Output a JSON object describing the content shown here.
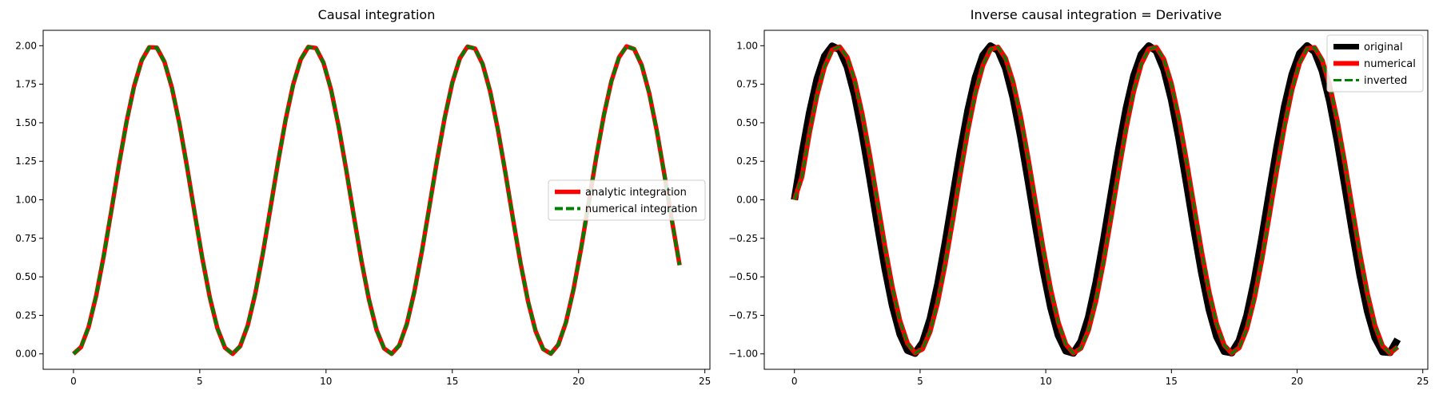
{
  "chart_data": [
    {
      "type": "line",
      "title": "Causal integration",
      "xlabel": "",
      "ylabel": "",
      "xlim": [
        -1.2,
        25.2
      ],
      "ylim": [
        -0.1,
        2.1
      ],
      "xticks": [
        "0",
        "5",
        "10",
        "15",
        "20",
        "25"
      ],
      "yticks": [
        "0.00",
        "0.25",
        "0.50",
        "0.75",
        "1.00",
        "1.25",
        "1.50",
        "1.75",
        "2.00"
      ],
      "grid": false,
      "legend_position": "center-right",
      "x_range": [
        0,
        24
      ],
      "x_step": 0.3,
      "series": [
        {
          "name": "analytic integration",
          "function": "1 - cos(x)",
          "color": "#ff0000",
          "style": "solid"
        },
        {
          "name": "numerical integration",
          "function": "1 - cos(x)",
          "color": "#008000",
          "style": "dashed"
        }
      ]
    },
    {
      "type": "line",
      "title": "Inverse causal integration = Derivative",
      "xlabel": "",
      "ylabel": "",
      "xlim": [
        -1.2,
        25.2
      ],
      "ylim": [
        -1.1,
        1.1
      ],
      "xticks": [
        "0",
        "5",
        "10",
        "15",
        "20",
        "25"
      ],
      "yticks": [
        "−1.00",
        "−0.75",
        "−0.50",
        "−0.25",
        "0.00",
        "0.25",
        "0.50",
        "0.75",
        "1.00"
      ],
      "grid": false,
      "legend_position": "top-right",
      "x_range": [
        0,
        24
      ],
      "x_step": 0.3,
      "series": [
        {
          "name": "original",
          "function": "sin(x)",
          "color": "#000000",
          "style": "solid"
        },
        {
          "name": "numerical",
          "function": "sin(x) (backward difference)",
          "color": "#ff0000",
          "style": "solid"
        },
        {
          "name": "inverted",
          "function": "sin(x) (backward difference)",
          "color": "#008000",
          "style": "dashed"
        }
      ]
    }
  ]
}
